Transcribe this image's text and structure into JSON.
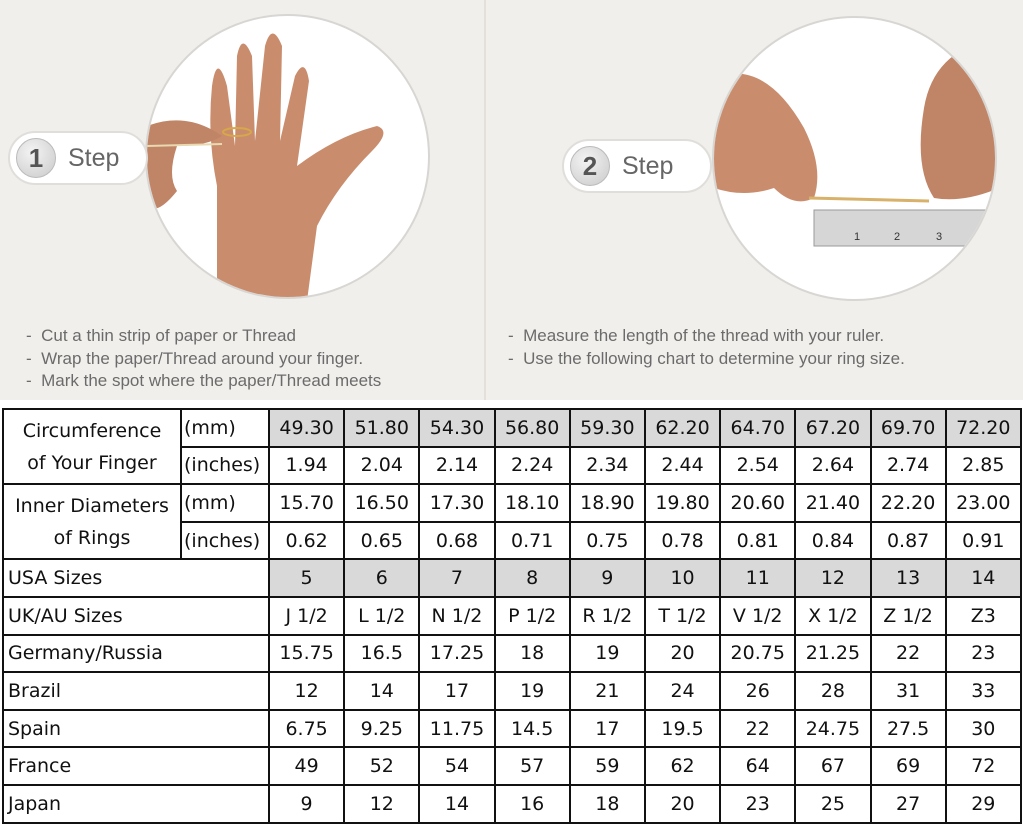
{
  "steps": [
    {
      "number": "1",
      "label": "Step",
      "instructions": [
        "Cut a thin strip of paper or Thread",
        "Wrap the paper/Thread around your finger.",
        "Mark the spot where the paper/Thread meets"
      ]
    },
    {
      "number": "2",
      "label": "Step",
      "instructions": [
        "Measure the length of the thread with your ruler.",
        "Use the following chart to determine your ring size."
      ]
    }
  ],
  "table": {
    "groups": [
      {
        "label_line1": "Circumference",
        "label_line2": "of Your Finger",
        "rows": [
          {
            "unit": "(mm)",
            "shaded": true,
            "values": [
              "49.30",
              "51.80",
              "54.30",
              "56.80",
              "59.30",
              "62.20",
              "64.70",
              "67.20",
              "69.70",
              "72.20"
            ]
          },
          {
            "unit": "(inches)",
            "shaded": false,
            "values": [
              "1.94",
              "2.04",
              "2.14",
              "2.24",
              "2.34",
              "2.44",
              "2.54",
              "2.64",
              "2.74",
              "2.85"
            ]
          }
        ]
      },
      {
        "label_line1": "Inner Diameters",
        "label_line2": "of Rings",
        "rows": [
          {
            "unit": "(mm)",
            "shaded": false,
            "values": [
              "15.70",
              "16.50",
              "17.30",
              "18.10",
              "18.90",
              "19.80",
              "20.60",
              "21.40",
              "22.20",
              "23.00"
            ]
          },
          {
            "unit": "(inches)",
            "shaded": false,
            "values": [
              "0.62",
              "0.65",
              "0.68",
              "0.71",
              "0.75",
              "0.78",
              "0.81",
              "0.84",
              "0.87",
              "0.91"
            ]
          }
        ]
      }
    ],
    "rows": [
      {
        "label": "USA Sizes",
        "shaded": true,
        "values": [
          "5",
          "6",
          "7",
          "8",
          "9",
          "10",
          "11",
          "12",
          "13",
          "14"
        ]
      },
      {
        "label": "UK/AU Sizes",
        "shaded": false,
        "values": [
          "J 1/2",
          "L 1/2",
          "N 1/2",
          "P 1/2",
          "R 1/2",
          "T 1/2",
          "V 1/2",
          "X 1/2",
          "Z 1/2",
          "Z3"
        ]
      },
      {
        "label": "Germany/Russia",
        "shaded": false,
        "values": [
          "15.75",
          "16.5",
          "17.25",
          "18",
          "19",
          "20",
          "20.75",
          "21.25",
          "22",
          "23"
        ]
      },
      {
        "label": "Brazil",
        "shaded": false,
        "values": [
          "12",
          "14",
          "17",
          "19",
          "21",
          "24",
          "26",
          "28",
          "31",
          "33"
        ]
      },
      {
        "label": "Spain",
        "shaded": false,
        "values": [
          "6.75",
          "9.25",
          "11.75",
          "14.5",
          "17",
          "19.5",
          "22",
          "24.75",
          "27.5",
          "30"
        ]
      },
      {
        "label": "France",
        "shaded": false,
        "values": [
          "49",
          "52",
          "54",
          "57",
          "59",
          "62",
          "64",
          "67",
          "69",
          "72"
        ]
      },
      {
        "label": "Japan",
        "shaded": false,
        "values": [
          "9",
          "12",
          "14",
          "16",
          "18",
          "20",
          "23",
          "25",
          "27",
          "29"
        ]
      }
    ]
  },
  "ruler_marks": [
    "1",
    "2",
    "3"
  ],
  "colors": {
    "background": "#f1efec",
    "shaded_cell": "#d9d9d9",
    "text": "#6b6b6b"
  }
}
